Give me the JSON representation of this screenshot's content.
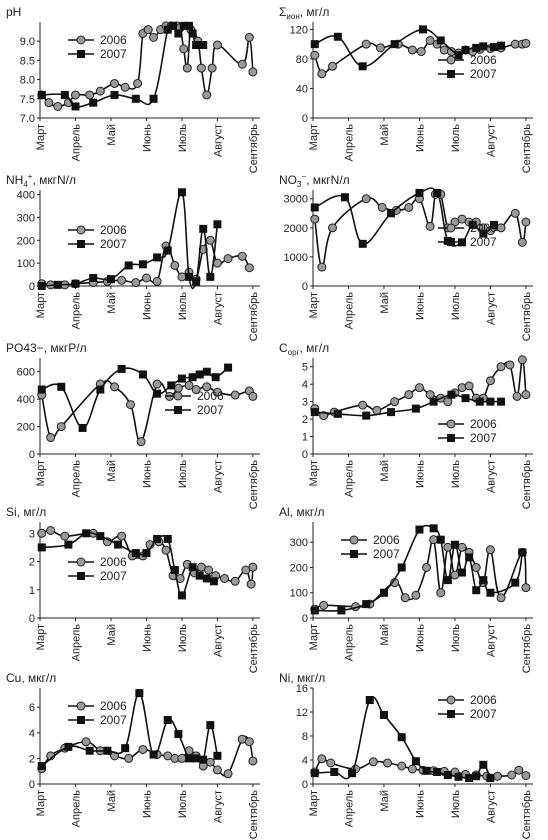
{
  "months": [
    "Март",
    "Апрель",
    "Май",
    "Июнь",
    "Июль",
    "Август",
    "Сентябрь"
  ],
  "chart_data": [
    {
      "type": "line",
      "title": "pH",
      "ylim": [
        7.0,
        9.5
      ],
      "yticks": [
        7.0,
        7.5,
        8.0,
        8.5,
        9.0
      ],
      "tick_decimals": 1,
      "xticks": [
        "Март",
        "Апрель",
        "Май",
        "Июнь",
        "Июль",
        "Август",
        "Сентябрь"
      ],
      "legend_position": "top-left",
      "series": [
        {
          "name": "2006",
          "marker": "circle",
          "x": [
            0.05,
            0.25,
            0.5,
            0.8,
            1.0,
            1.4,
            1.7,
            2.1,
            2.4,
            2.75,
            2.9,
            3.05,
            3.2,
            3.4,
            3.55,
            3.7,
            3.85,
            3.95,
            4.05,
            4.15,
            4.25,
            4.45,
            4.55,
            4.7,
            4.85,
            5.0,
            5.7,
            5.9,
            6.0
          ],
          "y": [
            7.6,
            7.4,
            7.3,
            7.4,
            7.6,
            7.6,
            7.7,
            7.9,
            7.8,
            7.9,
            9.2,
            9.3,
            9.1,
            9.3,
            9.4,
            9.4,
            9.4,
            9.35,
            8.8,
            8.3,
            9.3,
            9.0,
            8.3,
            7.6,
            8.3,
            8.9,
            8.4,
            9.1,
            8.2
          ]
        },
        {
          "name": "2007",
          "marker": "square",
          "x": [
            0.05,
            0.7,
            1.0,
            1.5,
            2.1,
            2.7,
            3.2,
            3.6,
            3.75,
            3.9,
            4.05,
            4.2,
            4.3,
            4.4,
            4.6
          ],
          "y": [
            7.6,
            7.6,
            7.3,
            7.4,
            7.6,
            7.5,
            7.5,
            9.3,
            9.4,
            9.2,
            9.4,
            9.4,
            9.2,
            8.9,
            8.9
          ]
        }
      ]
    },
    {
      "type": "line",
      "title": "Σион, мг/л",
      "ylim": [
        0,
        130
      ],
      "yticks": [
        0,
        40,
        80,
        120
      ],
      "tick_decimals": 0,
      "xticks": [
        "Март",
        "Апрель",
        "Май",
        "Июнь",
        "Июль",
        "Август",
        "Сентябрь"
      ],
      "legend_position": "middle-right",
      "series": [
        {
          "name": "2006",
          "marker": "circle",
          "x": [
            0.05,
            0.25,
            0.55,
            1.5,
            1.9,
            2.4,
            2.8,
            3.05,
            3.3,
            3.5,
            3.7,
            3.9,
            4.1,
            4.3,
            4.5,
            4.7,
            5.0,
            5.3,
            5.7,
            5.9,
            6.0
          ],
          "y": [
            85,
            60,
            70,
            100,
            95,
            100,
            92,
            90,
            105,
            100,
            92,
            90,
            88,
            92,
            90,
            93,
            94,
            95,
            100,
            100,
            101
          ]
        },
        {
          "name": "2007",
          "marker": "square",
          "x": [
            0.05,
            0.7,
            1.4,
            2.3,
            3.1,
            3.6,
            4.1,
            4.3,
            4.6,
            4.8,
            5.1,
            5.3
          ],
          "y": [
            100,
            110,
            70,
            100,
            120,
            105,
            85,
            92,
            95,
            97,
            96,
            98
          ]
        }
      ]
    },
    {
      "type": "line",
      "title": "NH4+, мкгN/л",
      "ylim": [
        0,
        420
      ],
      "yticks": [
        0,
        100,
        200,
        300,
        400
      ],
      "tick_decimals": 0,
      "xticks": [
        "Март",
        "Апрель",
        "Май",
        "Июнь",
        "Июль",
        "Август",
        "Сентябрь"
      ],
      "legend_position": "middle-left",
      "series": [
        {
          "name": "2006",
          "marker": "circle",
          "x": [
            0.05,
            0.3,
            0.7,
            1.0,
            1.5,
            1.9,
            2.3,
            2.7,
            3.0,
            3.3,
            3.55,
            3.8,
            4.0,
            4.2,
            4.4,
            4.6,
            4.8,
            5.0,
            5.3,
            5.7,
            5.9
          ],
          "y": [
            10,
            5,
            5,
            10,
            15,
            20,
            25,
            15,
            35,
            20,
            175,
            90,
            40,
            60,
            30,
            160,
            200,
            100,
            120,
            130,
            80
          ]
        },
        {
          "name": "2007",
          "marker": "square",
          "x": [
            0.05,
            0.5,
            1.0,
            1.5,
            2.0,
            2.5,
            2.9,
            3.3,
            3.6,
            4.0,
            4.2,
            4.4,
            4.6,
            4.8,
            5.0
          ],
          "y": [
            0,
            5,
            10,
            35,
            30,
            90,
            95,
            125,
            155,
            410,
            40,
            20,
            250,
            40,
            270
          ]
        }
      ]
    },
    {
      "type": "line",
      "title": "NO3−, мкгN/л",
      "ylim": [
        0,
        3300
      ],
      "yticks": [
        0,
        1000,
        2000,
        3000
      ],
      "tick_decimals": 0,
      "xticks": [
        "Март",
        "Апрель",
        "Май",
        "Июнь",
        "Июль",
        "Август",
        "Сентябрь"
      ],
      "legend_position": "middle-right",
      "series": [
        {
          "name": "2006",
          "marker": "circle",
          "x": [
            0.05,
            0.25,
            0.55,
            1.5,
            1.95,
            2.35,
            2.7,
            3.0,
            3.3,
            3.45,
            3.6,
            3.8,
            4.0,
            4.2,
            4.4,
            4.6,
            4.8,
            5.0,
            5.3,
            5.7,
            5.9,
            6.0
          ],
          "y": [
            2300,
            650,
            2000,
            3000,
            2700,
            2600,
            2700,
            3000,
            2050,
            3150,
            3150,
            2000,
            2200,
            2300,
            2200,
            2200,
            2000,
            1900,
            2000,
            2500,
            1500,
            2200
          ]
        },
        {
          "name": "2007",
          "marker": "square",
          "x": [
            0.05,
            0.9,
            1.4,
            2.2,
            3.0,
            3.5,
            3.8,
            4.2,
            4.5,
            4.8,
            5.1
          ],
          "y": [
            2700,
            3050,
            1450,
            2500,
            3200,
            3200,
            1550,
            1500,
            2100,
            1800,
            2100
          ]
        }
      ]
    },
    {
      "type": "line",
      "title": "PO43−, мкгP/л",
      "ylim": [
        0,
        700
      ],
      "yticks": [
        0,
        200,
        400,
        600
      ],
      "tick_decimals": 0,
      "xticks": [
        "Март",
        "Апрель",
        "Май",
        "Июнь",
        "Июль",
        "Август",
        "Сентябрь"
      ],
      "legend_position": "middle-right",
      "series": [
        {
          "name": "2006",
          "marker": "circle",
          "x": [
            0.05,
            0.3,
            0.6,
            1.7,
            2.1,
            2.55,
            2.85,
            3.3,
            3.65,
            3.9,
            4.2,
            4.4,
            4.7,
            5.0,
            5.5,
            5.9,
            6.0
          ],
          "y": [
            430,
            120,
            200,
            510,
            490,
            360,
            90,
            510,
            420,
            480,
            500,
            470,
            490,
            450,
            430,
            460,
            420
          ]
        },
        {
          "name": "2007",
          "marker": "square",
          "x": [
            0.05,
            0.6,
            1.2,
            1.7,
            2.3,
            2.9,
            3.3,
            3.7,
            4.0,
            4.3,
            4.5,
            4.7,
            4.95,
            5.3
          ],
          "y": [
            470,
            490,
            190,
            470,
            620,
            580,
            440,
            500,
            550,
            560,
            580,
            600,
            560,
            630
          ]
        }
      ]
    },
    {
      "type": "line",
      "title": "Cорг, мг/л",
      "ylim": [
        0,
        5.5
      ],
      "yticks": [
        0,
        1,
        2,
        3,
        4,
        5
      ],
      "tick_decimals": 0,
      "xticks": [
        "Март",
        "Апрель",
        "Май",
        "Июнь",
        "Июль",
        "Август",
        "Сентябрь"
      ],
      "legend_position": "bottom-right",
      "series": [
        {
          "name": "2006",
          "marker": "circle",
          "x": [
            0.05,
            0.3,
            0.6,
            1.4,
            1.8,
            2.3,
            2.7,
            3.0,
            3.3,
            3.6,
            3.8,
            4.0,
            4.2,
            4.4,
            4.6,
            4.8,
            5.0,
            5.3,
            5.55,
            5.75,
            5.9,
            6.0
          ],
          "y": [
            2.6,
            2.2,
            2.4,
            2.8,
            2.5,
            3.0,
            3.4,
            3.8,
            3.4,
            3.2,
            3.0,
            3.5,
            3.8,
            3.9,
            3.2,
            3.2,
            4.2,
            5.0,
            5.1,
            3.3,
            5.4,
            3.4
          ]
        },
        {
          "name": "2007",
          "marker": "square",
          "x": [
            0.05,
            0.7,
            1.5,
            2.2,
            2.9,
            3.4,
            3.9,
            4.3,
            4.7,
            5.0,
            5.3
          ],
          "y": [
            2.4,
            2.3,
            2.2,
            2.4,
            2.6,
            3.0,
            3.4,
            3.2,
            3.0,
            3.0,
            3.0
          ]
        }
      ]
    },
    {
      "type": "line",
      "title": "Si, мг/л",
      "ylim": [
        0,
        3.4
      ],
      "yticks": [
        0,
        1,
        2,
        3
      ],
      "tick_decimals": 0,
      "xticks": [
        "Март",
        "Апрель",
        "Май",
        "Июнь",
        "Июль",
        "Август",
        "Сентябрь"
      ],
      "legend_position": "middle-left",
      "series": [
        {
          "name": "2006",
          "marker": "circle",
          "x": [
            0.05,
            0.3,
            0.7,
            1.5,
            1.9,
            2.3,
            2.6,
            2.9,
            3.1,
            3.35,
            3.55,
            3.75,
            3.95,
            4.15,
            4.35,
            4.55,
            4.75,
            4.95,
            5.2,
            5.5,
            5.8,
            5.95,
            6.0
          ],
          "y": [
            3.0,
            3.1,
            2.9,
            3.0,
            2.7,
            2.9,
            2.2,
            2.2,
            2.6,
            2.7,
            2.4,
            1.5,
            1.4,
            1.9,
            1.6,
            1.8,
            1.7,
            1.5,
            1.4,
            1.3,
            1.7,
            1.2,
            1.8
          ]
        },
        {
          "name": "2007",
          "marker": "square",
          "x": [
            0.05,
            0.8,
            1.3,
            1.7,
            2.2,
            2.7,
            3.0,
            3.3,
            3.6,
            3.8,
            4.0,
            4.3,
            4.5,
            4.7,
            4.9
          ],
          "y": [
            2.5,
            2.6,
            3.0,
            2.9,
            2.6,
            2.3,
            2.3,
            2.8,
            2.8,
            1.7,
            0.8,
            1.8,
            1.5,
            1.4,
            1.3
          ]
        }
      ]
    },
    {
      "type": "line",
      "title": "Al, мкг/л",
      "ylim": [
        0,
        380
      ],
      "yticks": [
        0,
        100,
        200,
        300
      ],
      "tick_decimals": 0,
      "xticks": [
        "Март",
        "Апрель",
        "Май",
        "Июнь",
        "Июль",
        "Август",
        "Сентябрь"
      ],
      "legend_position": "top-left",
      "series": [
        {
          "name": "2006",
          "marker": "circle",
          "x": [
            0.05,
            0.3,
            1.2,
            1.6,
            2.3,
            2.6,
            2.9,
            3.2,
            3.4,
            3.6,
            3.8,
            4.0,
            4.2,
            4.4,
            4.6,
            4.8,
            5.0,
            5.3,
            5.9,
            6.0
          ],
          "y": [
            35,
            50,
            45,
            55,
            140,
            80,
            90,
            200,
            310,
            100,
            280,
            170,
            280,
            260,
            200,
            140,
            270,
            80,
            260,
            120
          ]
        },
        {
          "name": "2007",
          "marker": "square",
          "x": [
            0.05,
            0.8,
            1.5,
            2.0,
            2.5,
            3.0,
            3.4,
            3.6,
            3.8,
            4.0,
            4.2,
            4.4,
            4.6,
            4.8,
            5.0,
            5.7,
            5.9
          ],
          "y": [
            30,
            30,
            55,
            100,
            200,
            350,
            355,
            310,
            150,
            290,
            180,
            240,
            110,
            150,
            100,
            140,
            260
          ]
        }
      ]
    },
    {
      "type": "line",
      "title": "Cu, мкг/л",
      "ylim": [
        0,
        7.5
      ],
      "yticks": [
        0,
        2,
        4,
        6
      ],
      "tick_decimals": 0,
      "xticks": [
        "Март",
        "Апрель",
        "Май",
        "Июнь",
        "Июль",
        "Август",
        "Сентябрь"
      ],
      "legend_position": "top-left",
      "series": [
        {
          "name": "2006",
          "marker": "circle",
          "x": [
            0.05,
            0.3,
            0.7,
            1.3,
            1.7,
            2.1,
            2.5,
            2.9,
            3.3,
            3.6,
            3.8,
            4.0,
            4.2,
            4.4,
            4.6,
            4.8,
            5.0,
            5.3,
            5.7,
            5.9,
            6.0
          ],
          "y": [
            1.2,
            2.2,
            2.8,
            3.3,
            2.6,
            2.2,
            2.0,
            2.7,
            2.3,
            2.2,
            2.0,
            2.0,
            2.6,
            2.2,
            1.4,
            1.7,
            1.1,
            0.8,
            3.5,
            3.3,
            1.8
          ]
        },
        {
          "name": "2007",
          "marker": "square",
          "x": [
            0.05,
            0.8,
            1.4,
            1.9,
            2.4,
            2.8,
            3.2,
            3.6,
            3.9,
            4.2,
            4.4,
            4.6,
            4.8,
            5.0
          ],
          "y": [
            1.4,
            2.9,
            2.6,
            2.6,
            2.8,
            7.1,
            2.3,
            5.0,
            3.9,
            2.0,
            2.0,
            1.9,
            4.6,
            2.2
          ]
        }
      ]
    },
    {
      "type": "line",
      "title": "Ni, мкг/л",
      "ylim": [
        0,
        16
      ],
      "yticks": [
        0,
        4,
        8,
        12,
        16
      ],
      "tick_decimals": 0,
      "xticks": [
        "Март",
        "Апрель",
        "Май",
        "Июнь",
        "Июль",
        "Август",
        "Сентябрь"
      ],
      "legend_position": "top-right",
      "series": [
        {
          "name": "2006",
          "marker": "circle",
          "x": [
            0.05,
            0.25,
            0.5,
            1.2,
            1.7,
            2.1,
            2.5,
            2.8,
            3.1,
            3.4,
            3.7,
            4.0,
            4.3,
            4.6,
            4.9,
            5.2,
            5.6,
            5.8,
            6.0
          ],
          "y": [
            2.0,
            4.2,
            3.5,
            2.5,
            3.7,
            3.5,
            3.0,
            2.5,
            2.3,
            2.2,
            2.1,
            2.0,
            1.6,
            1.5,
            1.3,
            1.3,
            1.5,
            2.3,
            1.4
          ]
        },
        {
          "name": "2007",
          "marker": "square",
          "x": [
            0.05,
            0.6,
            1.1,
            1.6,
            2.0,
            2.5,
            2.9,
            3.2,
            3.5,
            3.8,
            4.1,
            4.4,
            4.6,
            4.8,
            5.0
          ],
          "y": [
            1.8,
            2.0,
            1.8,
            14.0,
            11.5,
            7.8,
            3.8,
            2.2,
            2.0,
            1.5,
            1.2,
            1.0,
            1.3,
            3.2,
            1.0
          ]
        }
      ]
    }
  ]
}
